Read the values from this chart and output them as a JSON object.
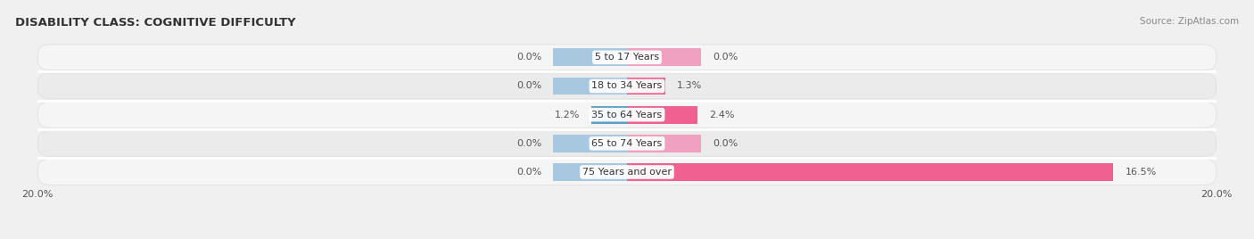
{
  "title": "DISABILITY CLASS: COGNITIVE DIFFICULTY",
  "source": "Source: ZipAtlas.com",
  "categories": [
    "5 to 17 Years",
    "18 to 34 Years",
    "35 to 64 Years",
    "65 to 74 Years",
    "75 Years and over"
  ],
  "male_values": [
    0.0,
    0.0,
    1.2,
    0.0,
    0.0
  ],
  "female_values": [
    0.0,
    1.3,
    2.4,
    0.0,
    16.5
  ],
  "male_color_light": "#a8c8e0",
  "male_color_dark": "#5a9ec9",
  "female_color_light": "#f0a0c0",
  "female_color_bright": "#f06090",
  "row_bg_odd": "#f2f2f2",
  "row_bg_even": "#e8e8e8",
  "xlim": 20.0,
  "stub_size": 2.5,
  "bar_height": 0.62,
  "label_fontsize": 8.0,
  "title_fontsize": 9.5,
  "source_fontsize": 7.5
}
